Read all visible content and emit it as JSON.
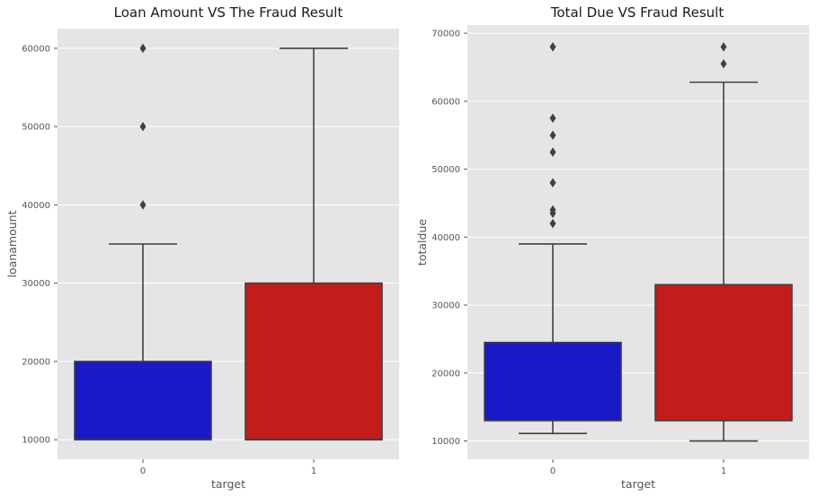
{
  "colors": {
    "panel_bg": "#e5e5e5",
    "grid": "#ffffff",
    "box_edge": "#404040",
    "whisker": "#404040"
  },
  "chart_data": [
    {
      "type": "box",
      "title": "Loan Amount VS The Fraud Result",
      "xlabel": "target",
      "ylabel": "loanamount",
      "categories": [
        "0",
        "1"
      ],
      "ylim": [
        7500,
        62500
      ],
      "yticks": [
        10000,
        20000,
        30000,
        40000,
        50000,
        60000
      ],
      "ytick_labels": [
        "10000",
        "20000",
        "30000",
        "40000",
        "50000",
        "60000"
      ],
      "grid": true,
      "boxes": [
        {
          "category": "0",
          "color": "#1919c8",
          "whisker_low": 10000,
          "q1": 10000,
          "median": 10000,
          "q3": 20000,
          "whisker_high": 35000,
          "outliers": [
            40000,
            50000,
            60000
          ]
        },
        {
          "category": "1",
          "color": "#c41b1b",
          "whisker_low": 10000,
          "q1": 10000,
          "median": 10000,
          "q3": 30000,
          "whisker_high": 60000,
          "outliers": []
        }
      ]
    },
    {
      "type": "box",
      "title": "Total Due VS Fraud Result",
      "xlabel": "target",
      "ylabel": "totaldue",
      "categories": [
        "0",
        "1"
      ],
      "ylim": [
        7300,
        71200
      ],
      "yticks": [
        10000,
        20000,
        30000,
        40000,
        50000,
        60000,
        70000
      ],
      "ytick_labels": [
        "10000",
        "20000",
        "30000",
        "40000",
        "50000",
        "60000",
        "70000"
      ],
      "grid": true,
      "boxes": [
        {
          "category": "0",
          "color": "#1919c8",
          "whisker_low": 11100,
          "q1": 13000,
          "median": 13000,
          "q3": 24500,
          "whisker_high": 39000,
          "outliers": [
            42000,
            43500,
            44000,
            48000,
            52500,
            55000,
            57500,
            68000
          ]
        },
        {
          "category": "1",
          "color": "#c41b1b",
          "whisker_low": 10000,
          "q1": 13000,
          "median": 13000,
          "q3": 33000,
          "whisker_high": 62800,
          "outliers": [
            65500,
            68000
          ]
        }
      ]
    }
  ]
}
